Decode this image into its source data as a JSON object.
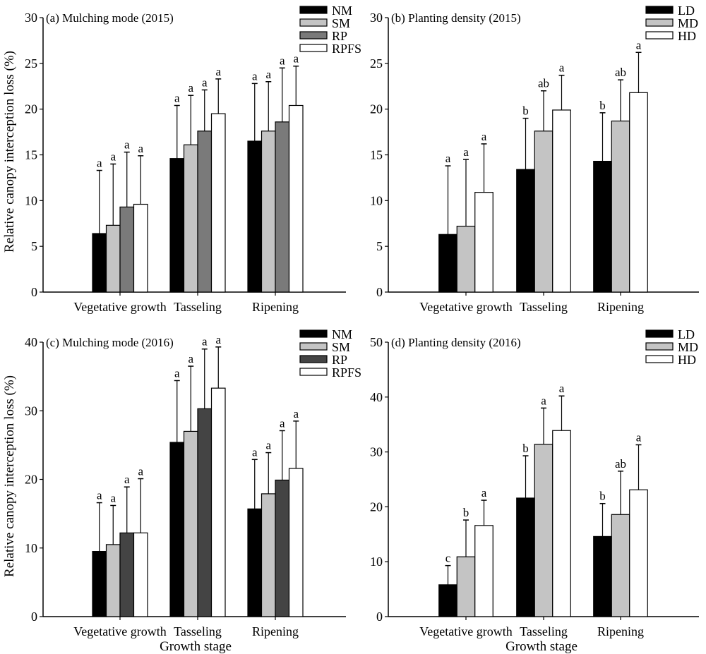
{
  "figure": {
    "ylabel": "Relative canopy interception loss (%)",
    "xlabel": "Growth stage"
  },
  "chart_data": [
    {
      "id": "a",
      "type": "bar",
      "title": "(a) Mulching mode (2015)",
      "categories": [
        "Vegetative growth",
        "Tasseling",
        "Ripening"
      ],
      "ylabel": "Relative canopy interception loss (%)",
      "xlabel": "",
      "ylim": [
        0,
        30
      ],
      "yticks": [
        0,
        5,
        10,
        15,
        20,
        25,
        30
      ],
      "legend_position": "top-right",
      "series": [
        {
          "name": "NM",
          "color": "#000000",
          "values": [
            6.4,
            14.6,
            16.5
          ],
          "error_top": [
            13.3,
            20.4,
            22.8
          ],
          "letters": [
            "a",
            "a",
            "a"
          ]
        },
        {
          "name": "SM",
          "color": "#c4c4c4",
          "values": [
            7.3,
            16.1,
            17.6
          ],
          "error_top": [
            14.0,
            21.5,
            23.0
          ],
          "letters": [
            "a",
            "a",
            "a"
          ]
        },
        {
          "name": "RP",
          "color": "#7a7a7a",
          "values": [
            9.3,
            17.6,
            18.6
          ],
          "error_top": [
            15.3,
            22.1,
            24.5
          ],
          "letters": [
            "a",
            "a",
            "a"
          ]
        },
        {
          "name": "RPFS",
          "color": "#ffffff",
          "values": [
            9.6,
            19.5,
            20.4
          ],
          "error_top": [
            14.9,
            23.3,
            24.7
          ],
          "letters": [
            "a",
            "a",
            "a"
          ]
        }
      ]
    },
    {
      "id": "b",
      "type": "bar",
      "title": "(b) Planting density (2015)",
      "categories": [
        "Vegetative growth",
        "Tasseling",
        "Ripening"
      ],
      "ylabel": "",
      "xlabel": "",
      "ylim": [
        0,
        30
      ],
      "yticks": [
        0,
        5,
        10,
        15,
        20,
        25,
        30
      ],
      "legend_position": "top-right",
      "series": [
        {
          "name": "LD",
          "color": "#000000",
          "values": [
            6.3,
            13.4,
            14.3
          ],
          "error_top": [
            13.8,
            19.0,
            19.6
          ],
          "letters": [
            "a",
            "b",
            "b"
          ]
        },
        {
          "name": "MD",
          "color": "#c4c4c4",
          "values": [
            7.2,
            17.6,
            18.7
          ],
          "error_top": [
            14.5,
            22.0,
            23.2
          ],
          "letters": [
            "a",
            "ab",
            "ab"
          ]
        },
        {
          "name": "HD",
          "color": "#ffffff",
          "values": [
            10.9,
            19.9,
            21.8
          ],
          "error_top": [
            16.2,
            23.7,
            26.2
          ],
          "letters": [
            "a",
            "a",
            "a"
          ]
        }
      ]
    },
    {
      "id": "c",
      "type": "bar",
      "title": "(c) Mulching mode (2016)",
      "categories": [
        "Vegetative growth",
        "Tasseling",
        "Ripening"
      ],
      "ylabel": "Relative canopy interception loss (%)",
      "xlabel": "Growth stage",
      "ylim": [
        0,
        40
      ],
      "yticks": [
        0,
        10,
        20,
        30,
        40
      ],
      "legend_position": "top-right",
      "series": [
        {
          "name": "NM",
          "color": "#000000",
          "values": [
            9.5,
            25.4,
            15.7
          ],
          "error_top": [
            16.6,
            34.4,
            22.9
          ],
          "letters": [
            "a",
            "a",
            "a"
          ]
        },
        {
          "name": "SM",
          "color": "#c4c4c4",
          "values": [
            10.5,
            27.0,
            17.9
          ],
          "error_top": [
            16.2,
            36.5,
            23.9
          ],
          "letters": [
            "a",
            "a",
            "a"
          ]
        },
        {
          "name": "RP",
          "color": "#444444",
          "values": [
            12.2,
            30.3,
            19.9
          ],
          "error_top": [
            18.9,
            39.0,
            27.1
          ],
          "letters": [
            "a",
            "a",
            "a"
          ]
        },
        {
          "name": "RPFS",
          "color": "#ffffff",
          "values": [
            12.2,
            33.3,
            21.6
          ],
          "error_top": [
            20.1,
            39.3,
            28.5
          ],
          "letters": [
            "a",
            "a",
            "a"
          ]
        }
      ]
    },
    {
      "id": "d",
      "type": "bar",
      "title": "(d) Planting density (2016)",
      "categories": [
        "Vegetative growth",
        "Tasseling",
        "Ripening"
      ],
      "ylabel": "",
      "xlabel": "Growth stage",
      "ylim": [
        0,
        50
      ],
      "yticks": [
        0,
        10,
        20,
        30,
        40,
        50
      ],
      "legend_position": "top-right",
      "series": [
        {
          "name": "LD",
          "color": "#000000",
          "values": [
            5.8,
            21.6,
            14.6
          ],
          "error_top": [
            9.3,
            29.3,
            20.6
          ],
          "letters": [
            "c",
            "b",
            "b"
          ]
        },
        {
          "name": "MD",
          "color": "#c4c4c4",
          "values": [
            10.9,
            31.4,
            18.6
          ],
          "error_top": [
            17.6,
            38.0,
            26.5
          ],
          "letters": [
            "b",
            "a",
            "ab"
          ]
        },
        {
          "name": "HD",
          "color": "#ffffff",
          "values": [
            16.6,
            33.9,
            23.1
          ],
          "error_top": [
            21.2,
            40.2,
            31.3
          ],
          "letters": [
            "a",
            "a",
            "a"
          ]
        }
      ]
    }
  ]
}
